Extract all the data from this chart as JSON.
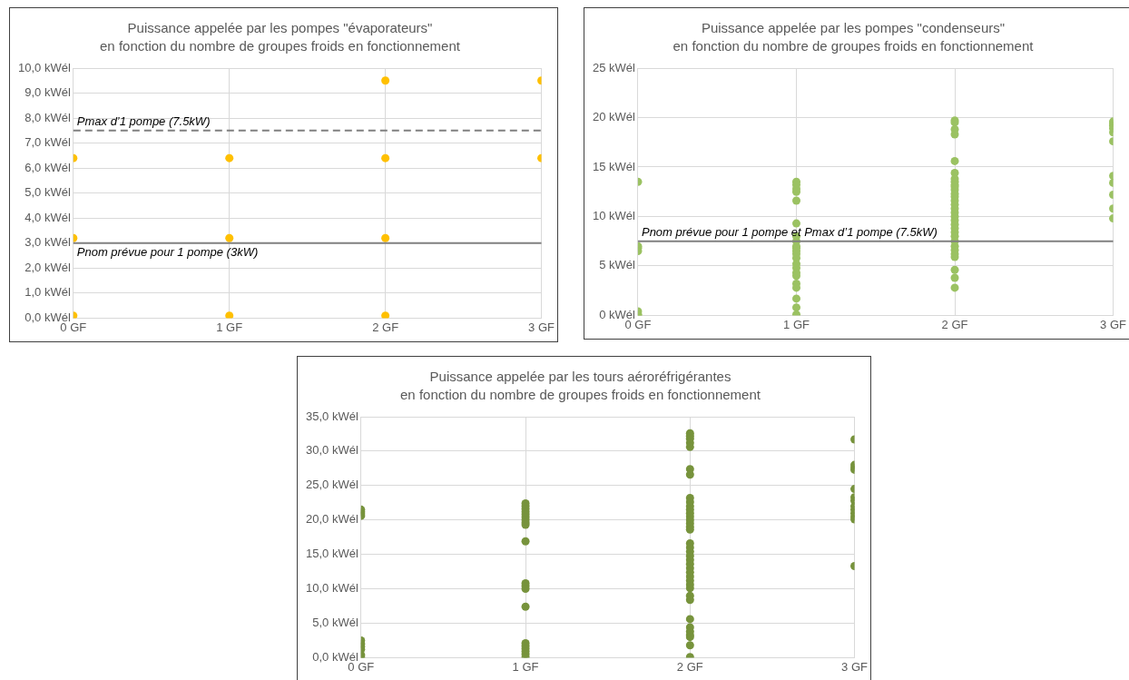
{
  "chart_data": [
    {
      "type": "scatter",
      "title": "Puissance appelée par les pompes \"évaporateurs\"",
      "subtitle": "en fonction du nombre de groupes froids en fonctionnement",
      "xlim": [
        0,
        3
      ],
      "xticks": [
        {
          "value": 0,
          "label": "0 GF"
        },
        {
          "value": 1,
          "label": "1 GF"
        },
        {
          "value": 2,
          "label": "2 GF"
        },
        {
          "value": 3,
          "label": "3 GF"
        }
      ],
      "ylim": [
        0,
        10
      ],
      "yticks": [
        {
          "value": 0,
          "label": "0,0 kWél"
        },
        {
          "value": 1,
          "label": "1,0 kWél"
        },
        {
          "value": 2,
          "label": "2,0 kWél"
        },
        {
          "value": 3,
          "label": "3,0 kWél"
        },
        {
          "value": 4,
          "label": "4,0 kWél"
        },
        {
          "value": 5,
          "label": "5,0 kWél"
        },
        {
          "value": 6,
          "label": "6,0 kWél"
        },
        {
          "value": 7,
          "label": "7,0 kWél"
        },
        {
          "value": 8,
          "label": "8,0 kWél"
        },
        {
          "value": 9,
          "label": "9,0 kWél"
        },
        {
          "value": 10,
          "label": "10,0 kWél"
        }
      ],
      "grid": true,
      "marker": "circle",
      "series": [
        {
          "color": "#ffc000",
          "x": [
            0,
            0,
            0,
            1,
            1,
            1,
            2,
            2,
            2,
            2,
            3,
            3
          ],
          "values": [
            6.4,
            3.2,
            0.1,
            6.4,
            3.2,
            0.1,
            9.5,
            6.4,
            3.2,
            0.1,
            9.5,
            6.4
          ]
        }
      ],
      "ref_lines": [
        {
          "axis": "y",
          "value": 7.5,
          "label": "Pmax d’1 pompe (7.5kW)",
          "color": "#808080",
          "line_style": "dashed"
        },
        {
          "axis": "y",
          "value": 3,
          "label": "Pnom prévue pour 1 pompe (3kW)",
          "color": "#808080",
          "line_style": "solid"
        }
      ]
    },
    {
      "type": "scatter",
      "title": "Puissance appelée par les pompes \"condenseurs\"",
      "subtitle": "en fonction du nombre de groupes froids en fonctionnement",
      "xlim": [
        0,
        3
      ],
      "xticks": [
        {
          "value": 0,
          "label": "0 GF"
        },
        {
          "value": 1,
          "label": "1 GF"
        },
        {
          "value": 2,
          "label": "2 GF"
        },
        {
          "value": 3,
          "label": "3 GF"
        }
      ],
      "ylim": [
        0,
        25
      ],
      "yticks": [
        {
          "value": 0,
          "label": "0 kWél"
        },
        {
          "value": 5,
          "label": "5 kWél"
        },
        {
          "value": 10,
          "label": "10 kWél"
        },
        {
          "value": 15,
          "label": "15 kWél"
        },
        {
          "value": 20,
          "label": "20 kWél"
        },
        {
          "value": 25,
          "label": "25 kWél"
        }
      ],
      "grid": true,
      "marker": "circle",
      "series": [
        {
          "color": "#9bc262",
          "x": [
            0,
            0,
            0,
            0,
            0,
            0,
            0,
            1,
            1,
            1,
            1,
            1,
            1,
            1,
            1,
            1,
            1,
            1,
            1,
            1,
            1,
            1,
            1,
            1,
            1,
            1,
            1,
            1,
            1,
            2,
            2,
            2,
            2,
            2,
            2,
            2,
            2,
            2,
            2,
            2,
            2,
            2,
            2,
            2,
            2,
            2,
            2,
            2,
            2,
            2,
            2,
            2,
            2,
            2,
            2,
            2,
            2,
            2,
            2,
            2,
            3,
            3,
            3,
            3,
            3,
            3,
            3,
            3,
            3,
            3,
            3
          ],
          "values": [
            13.5,
            7.0,
            6.8,
            6.5,
            0.4,
            0.1,
            0,
            13.5,
            13.2,
            12.8,
            12.5,
            11.6,
            9.3,
            8.0,
            7.5,
            7.0,
            6.8,
            6.5,
            6.2,
            5.8,
            5.2,
            4.8,
            4.3,
            4.0,
            3.2,
            2.8,
            1.7,
            0.8,
            0.1,
            19.7,
            19.5,
            18.8,
            18.3,
            15.6,
            14.4,
            13.8,
            13.5,
            13.2,
            13.0,
            12.7,
            12.3,
            12.0,
            11.6,
            11.2,
            10.8,
            10.4,
            10.0,
            9.6,
            9.2,
            8.8,
            8.4,
            8.0,
            7.5,
            7.0,
            6.6,
            6.2,
            5.9,
            4.6,
            3.8,
            2.8,
            19.6,
            19.4,
            19.2,
            18.9,
            18.5,
            17.6,
            14.1,
            13.4,
            12.2,
            10.8,
            9.8
          ]
        }
      ],
      "ref_lines": [
        {
          "axis": "y",
          "value": 7.5,
          "label": "Pnom prévue pour 1 pompe et Pmax d’1 pompe (7.5kW)",
          "color": "#808080",
          "line_style": "solid"
        }
      ]
    },
    {
      "type": "scatter",
      "title": "Puissance appelée par les tours aéroréfrigérantes",
      "subtitle": "en fonction du nombre de groupes froids en fonctionnement",
      "xlim": [
        0,
        3
      ],
      "xticks": [
        {
          "value": 0,
          "label": "0 GF"
        },
        {
          "value": 1,
          "label": "1 GF"
        },
        {
          "value": 2,
          "label": "2 GF"
        },
        {
          "value": 3,
          "label": "3 GF"
        }
      ],
      "ylim": [
        0,
        35
      ],
      "yticks": [
        {
          "value": 0,
          "label": "0,0 kWél"
        },
        {
          "value": 5,
          "label": "5,0 kWél"
        },
        {
          "value": 10,
          "label": "10,0 kWél"
        },
        {
          "value": 15,
          "label": "15,0 kWél"
        },
        {
          "value": 20,
          "label": "20,0 kWél"
        },
        {
          "value": 25,
          "label": "25,0 kWél"
        },
        {
          "value": 30,
          "label": "30,0 kWél"
        },
        {
          "value": 35,
          "label": "35,0 kWél"
        }
      ],
      "grid": true,
      "marker": "circle",
      "series": [
        {
          "color": "#77933c",
          "x": [
            0,
            0,
            0,
            0,
            0,
            0,
            0,
            0,
            0,
            0,
            1,
            1,
            1,
            1,
            1,
            1,
            1,
            1,
            1,
            1,
            1,
            1,
            1,
            1,
            1,
            1,
            1,
            1,
            1,
            1,
            2,
            2,
            2,
            2,
            2,
            2,
            2,
            2,
            2,
            2,
            2,
            2,
            2,
            2,
            2,
            2,
            2,
            2,
            2,
            2,
            2,
            2,
            2,
            2,
            2,
            2,
            2,
            2,
            2,
            2,
            2,
            2,
            2,
            2,
            2,
            2,
            2,
            2,
            3,
            3,
            3,
            3,
            3,
            3,
            3,
            3,
            3,
            3,
            3,
            3,
            3
          ],
          "values": [
            21.5,
            21.2,
            20.9,
            20.6,
            2.5,
            2.0,
            1.6,
            1.2,
            0.4,
            0.1,
            22.4,
            22.0,
            21.6,
            21.2,
            20.8,
            20.4,
            20.0,
            19.6,
            19.3,
            16.9,
            10.8,
            10.4,
            10.0,
            7.4,
            2.1,
            1.7,
            1.3,
            0.9,
            0.5,
            0.1,
            32.6,
            32.2,
            31.8,
            31.2,
            30.6,
            27.4,
            26.6,
            23.2,
            22.6,
            22.0,
            21.5,
            21.0,
            20.5,
            20.0,
            19.5,
            19.0,
            18.6,
            16.6,
            16.0,
            15.4,
            14.8,
            14.2,
            13.6,
            13.0,
            12.4,
            11.8,
            11.2,
            10.6,
            10.1,
            9.0,
            8.4,
            5.6,
            4.4,
            3.8,
            3.3,
            3.0,
            1.8,
            0.1,
            31.7,
            28.0,
            27.6,
            27.3,
            24.5,
            23.3,
            22.8,
            22.0,
            21.5,
            21.0,
            20.5,
            20.1,
            13.3
          ]
        }
      ]
    }
  ]
}
